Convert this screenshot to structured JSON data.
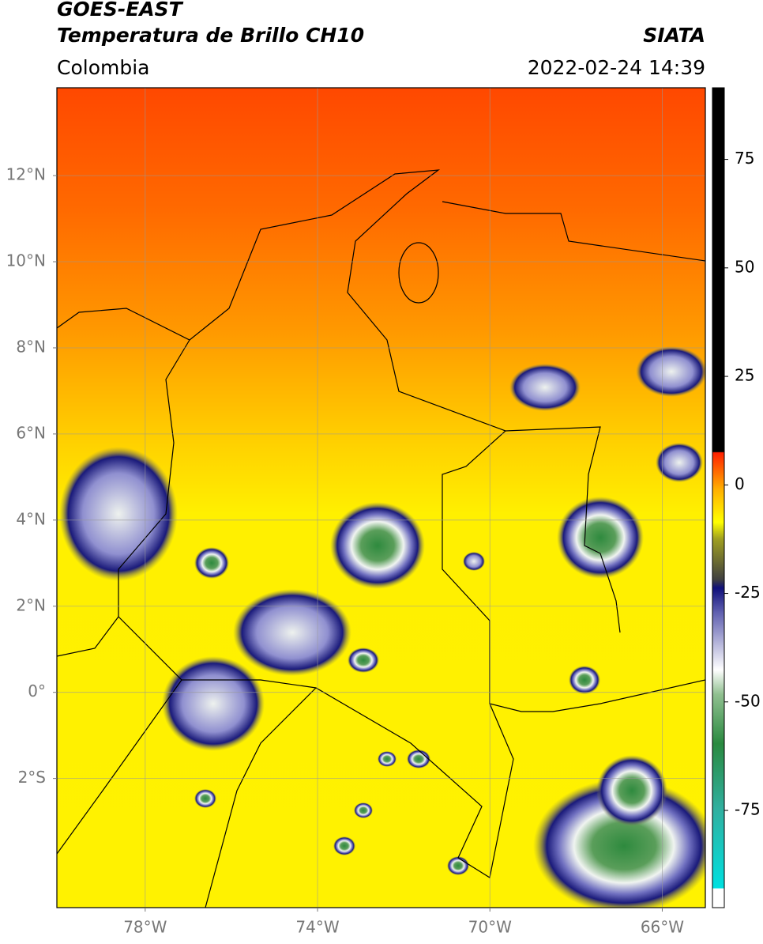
{
  "chart_data": {
    "type": "map",
    "title": "GOES-EAST",
    "subtitle": "Temperatura de Brillo CH10",
    "source": "SIATA",
    "region": "Colombia",
    "datetime": "2022-02-24 14:39",
    "xlim": [
      -80.05,
      -65
    ],
    "ylim": [
      -5,
      14.04
    ],
    "xticks": [
      {
        "value": -78,
        "label": "78°W"
      },
      {
        "value": -74,
        "label": "74°W"
      },
      {
        "value": -70,
        "label": "70°W"
      },
      {
        "value": -66,
        "label": "66°W"
      }
    ],
    "yticks": [
      {
        "value": -2,
        "label": "2°S"
      },
      {
        "value": 0,
        "label": "0°"
      },
      {
        "value": 2,
        "label": "2°N"
      },
      {
        "value": 4,
        "label": "4°N"
      },
      {
        "value": 6,
        "label": "6°N"
      },
      {
        "value": 8,
        "label": "8°N"
      },
      {
        "value": 10,
        "label": "10°N"
      },
      {
        "value": 12,
        "label": "12°N"
      }
    ],
    "grid": true,
    "colorbar": {
      "lim": [
        -97.4,
        91.5
      ],
      "ticks": [
        75,
        50,
        25,
        0,
        -25,
        -50,
        -75
      ]
    }
  }
}
